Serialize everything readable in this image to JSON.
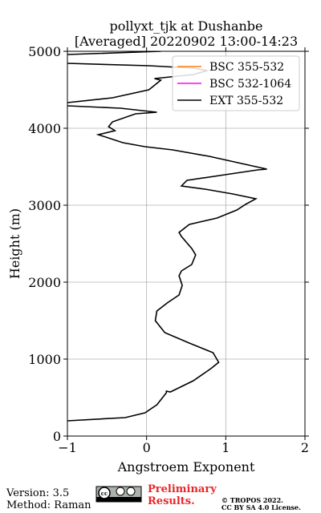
{
  "chart_data": {
    "type": "line",
    "title": "pollyxt_tjk at Dushanbe",
    "subtitle": "[Averaged] 20220902 13:00-14:23",
    "x_label": "Angstroem Exponent",
    "y_label": "Height (m)",
    "y": [
      198,
      240,
      302,
      406,
      562,
      583,
      573,
      719,
      875,
      958,
      1083,
      1208,
      1344,
      1500,
      1625,
      1729,
      1833,
      1958,
      2083,
      2146,
      2229,
      2354,
      2438,
      2594,
      2646,
      2750,
      2833,
      2938,
      3010,
      3083,
      3146,
      3208,
      3250,
      3323,
      3396,
      3458,
      3469,
      3542,
      3635,
      3719,
      3760,
      3812,
      3917,
      3969,
      4021,
      4083,
      4188,
      4208,
      4260,
      4292,
      4312,
      4333,
      4396,
      4500,
      4625,
      4646,
      4698,
      4750,
      4781,
      4812,
      4844,
      4900,
      4958,
      5000
    ],
    "series": [
      {
        "name": "BSC 355-532",
        "color": "#ff7f0e",
        "values": [
          null,
          null,
          null,
          null,
          null,
          null,
          null,
          null,
          null,
          null,
          null,
          null,
          null,
          null,
          null,
          null,
          null,
          null,
          null,
          null,
          null,
          null,
          null,
          null,
          null,
          null,
          null,
          null,
          null,
          null,
          null,
          null,
          null,
          null,
          null,
          null,
          null,
          null,
          null,
          null,
          null,
          null,
          null,
          null,
          null,
          null,
          null,
          null,
          null,
          null,
          null,
          null,
          null,
          null,
          null,
          null,
          null,
          null,
          null,
          null,
          null,
          null,
          null,
          null
        ]
      },
      {
        "name": "BSC 532-1064",
        "color": "#ff00ff",
        "values": [
          null,
          null,
          null,
          null,
          null,
          null,
          null,
          null,
          null,
          null,
          null,
          null,
          null,
          null,
          null,
          null,
          null,
          null,
          null,
          null,
          null,
          null,
          null,
          null,
          null,
          null,
          null,
          null,
          null,
          null,
          null,
          null,
          null,
          null,
          null,
          null,
          null,
          null,
          null,
          null,
          null,
          null,
          null,
          null,
          null,
          null,
          null,
          null,
          null,
          null,
          null,
          null,
          null,
          null,
          null,
          null,
          null,
          null,
          null,
          null,
          null,
          null,
          null,
          null
        ]
      },
      {
        "name": "EXT 355-532",
        "color": "#000000",
        "values": [
          -1.0,
          -0.27,
          -0.02,
          0.13,
          0.25,
          0.25,
          0.3,
          0.59,
          0.81,
          0.91,
          0.84,
          0.54,
          0.23,
          0.11,
          0.13,
          0.26,
          0.41,
          0.45,
          0.41,
          0.44,
          0.57,
          0.62,
          0.57,
          0.44,
          0.41,
          0.54,
          0.89,
          1.14,
          1.25,
          1.38,
          1.09,
          0.74,
          0.44,
          0.51,
          0.99,
          1.4,
          1.52,
          1.2,
          0.79,
          0.33,
          -0.02,
          -0.3,
          -0.61,
          -0.4,
          -0.48,
          -0.43,
          -0.14,
          0.13,
          -0.33,
          -1.0,
          null,
          -1.0,
          -0.43,
          0.03,
          0.18,
          0.1,
          0.59,
          0.77,
          0.59,
          0.03,
          -1.0,
          null,
          -1.0,
          0.18
        ]
      }
    ],
    "xlim": [
      -1,
      2
    ],
    "ylim": [
      0,
      5000
    ],
    "xticks": [
      {
        "value": -1,
        "label": "−1"
      },
      0,
      1,
      2
    ],
    "yticks": [
      0,
      1000,
      2000,
      3000,
      4000,
      5000
    ],
    "grid": true,
    "legend": "upper right",
    "footer": {
      "version": "Version: 3.5",
      "method": "Method: Raman",
      "preliminary": "Preliminary Results.",
      "copyright": "© TROPOS 2022.",
      "license": "CC BY SA 4.0 License."
    }
  }
}
